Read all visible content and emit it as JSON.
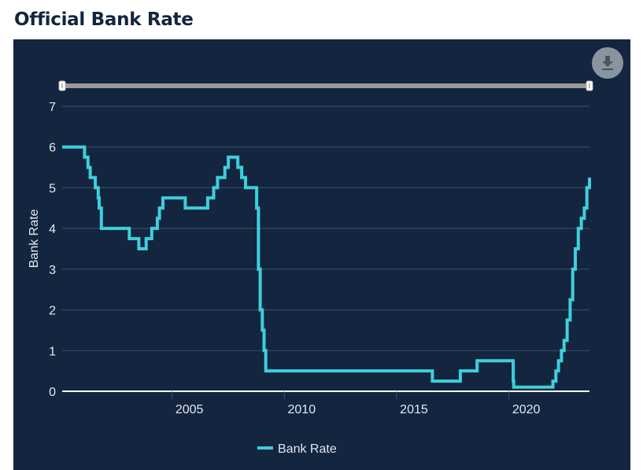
{
  "page": {
    "title": "Official Bank Rate"
  },
  "colors": {
    "background": "#13253f",
    "line": "#3ecfdc",
    "grid": "#3d5068",
    "axis": "#ffffff",
    "text": "#e3e8ee",
    "navigator": "#9a9a9a"
  },
  "controls": {
    "download_icon": "download-icon"
  },
  "chart_data": {
    "type": "line",
    "title": "",
    "xlabel": "",
    "ylabel": "Bank Rate",
    "x_ticks": [
      "2005",
      "2010",
      "2015",
      "2020"
    ],
    "y_ticks": [
      "0",
      "1",
      "2",
      "3",
      "4",
      "5",
      "6",
      "7"
    ],
    "xlim": [
      "2000-02-10",
      "2023-08-03"
    ],
    "ylim": [
      0,
      7
    ],
    "grid": true,
    "legend_position": "bottom-center",
    "step": true,
    "series": [
      {
        "name": "Bank Rate",
        "points": [
          [
            "2000-02-10",
            6.0
          ],
          [
            "2001-02-08",
            5.75
          ],
          [
            "2001-04-05",
            5.5
          ],
          [
            "2001-05-10",
            5.25
          ],
          [
            "2001-08-02",
            5.0
          ],
          [
            "2001-09-18",
            4.75
          ],
          [
            "2001-10-04",
            4.5
          ],
          [
            "2001-11-08",
            4.0
          ],
          [
            "2003-02-06",
            3.75
          ],
          [
            "2003-07-10",
            3.5
          ],
          [
            "2003-11-06",
            3.75
          ],
          [
            "2004-02-05",
            4.0
          ],
          [
            "2004-05-06",
            4.25
          ],
          [
            "2004-06-10",
            4.5
          ],
          [
            "2004-08-05",
            4.75
          ],
          [
            "2005-08-04",
            4.5
          ],
          [
            "2006-08-03",
            4.75
          ],
          [
            "2006-11-09",
            5.0
          ],
          [
            "2007-01-11",
            5.25
          ],
          [
            "2007-05-10",
            5.5
          ],
          [
            "2007-07-05",
            5.75
          ],
          [
            "2007-12-06",
            5.5
          ],
          [
            "2008-02-07",
            5.25
          ],
          [
            "2008-04-10",
            5.0
          ],
          [
            "2008-10-08",
            4.5
          ],
          [
            "2008-11-06",
            3.0
          ],
          [
            "2008-12-04",
            2.0
          ],
          [
            "2009-01-08",
            1.5
          ],
          [
            "2009-02-05",
            1.0
          ],
          [
            "2009-03-05",
            0.5
          ],
          [
            "2016-08-04",
            0.25
          ],
          [
            "2017-11-02",
            0.5
          ],
          [
            "2018-08-02",
            0.75
          ],
          [
            "2020-03-11",
            0.25
          ],
          [
            "2020-03-19",
            0.1
          ],
          [
            "2021-12-16",
            0.25
          ],
          [
            "2022-02-03",
            0.5
          ],
          [
            "2022-03-17",
            0.75
          ],
          [
            "2022-05-05",
            1.0
          ],
          [
            "2022-06-16",
            1.25
          ],
          [
            "2022-08-04",
            1.75
          ],
          [
            "2022-09-22",
            2.25
          ],
          [
            "2022-11-03",
            3.0
          ],
          [
            "2022-12-15",
            3.5
          ],
          [
            "2023-02-02",
            4.0
          ],
          [
            "2023-03-23",
            4.25
          ],
          [
            "2023-05-11",
            4.5
          ],
          [
            "2023-06-22",
            5.0
          ],
          [
            "2023-08-03",
            5.25
          ]
        ]
      }
    ]
  }
}
